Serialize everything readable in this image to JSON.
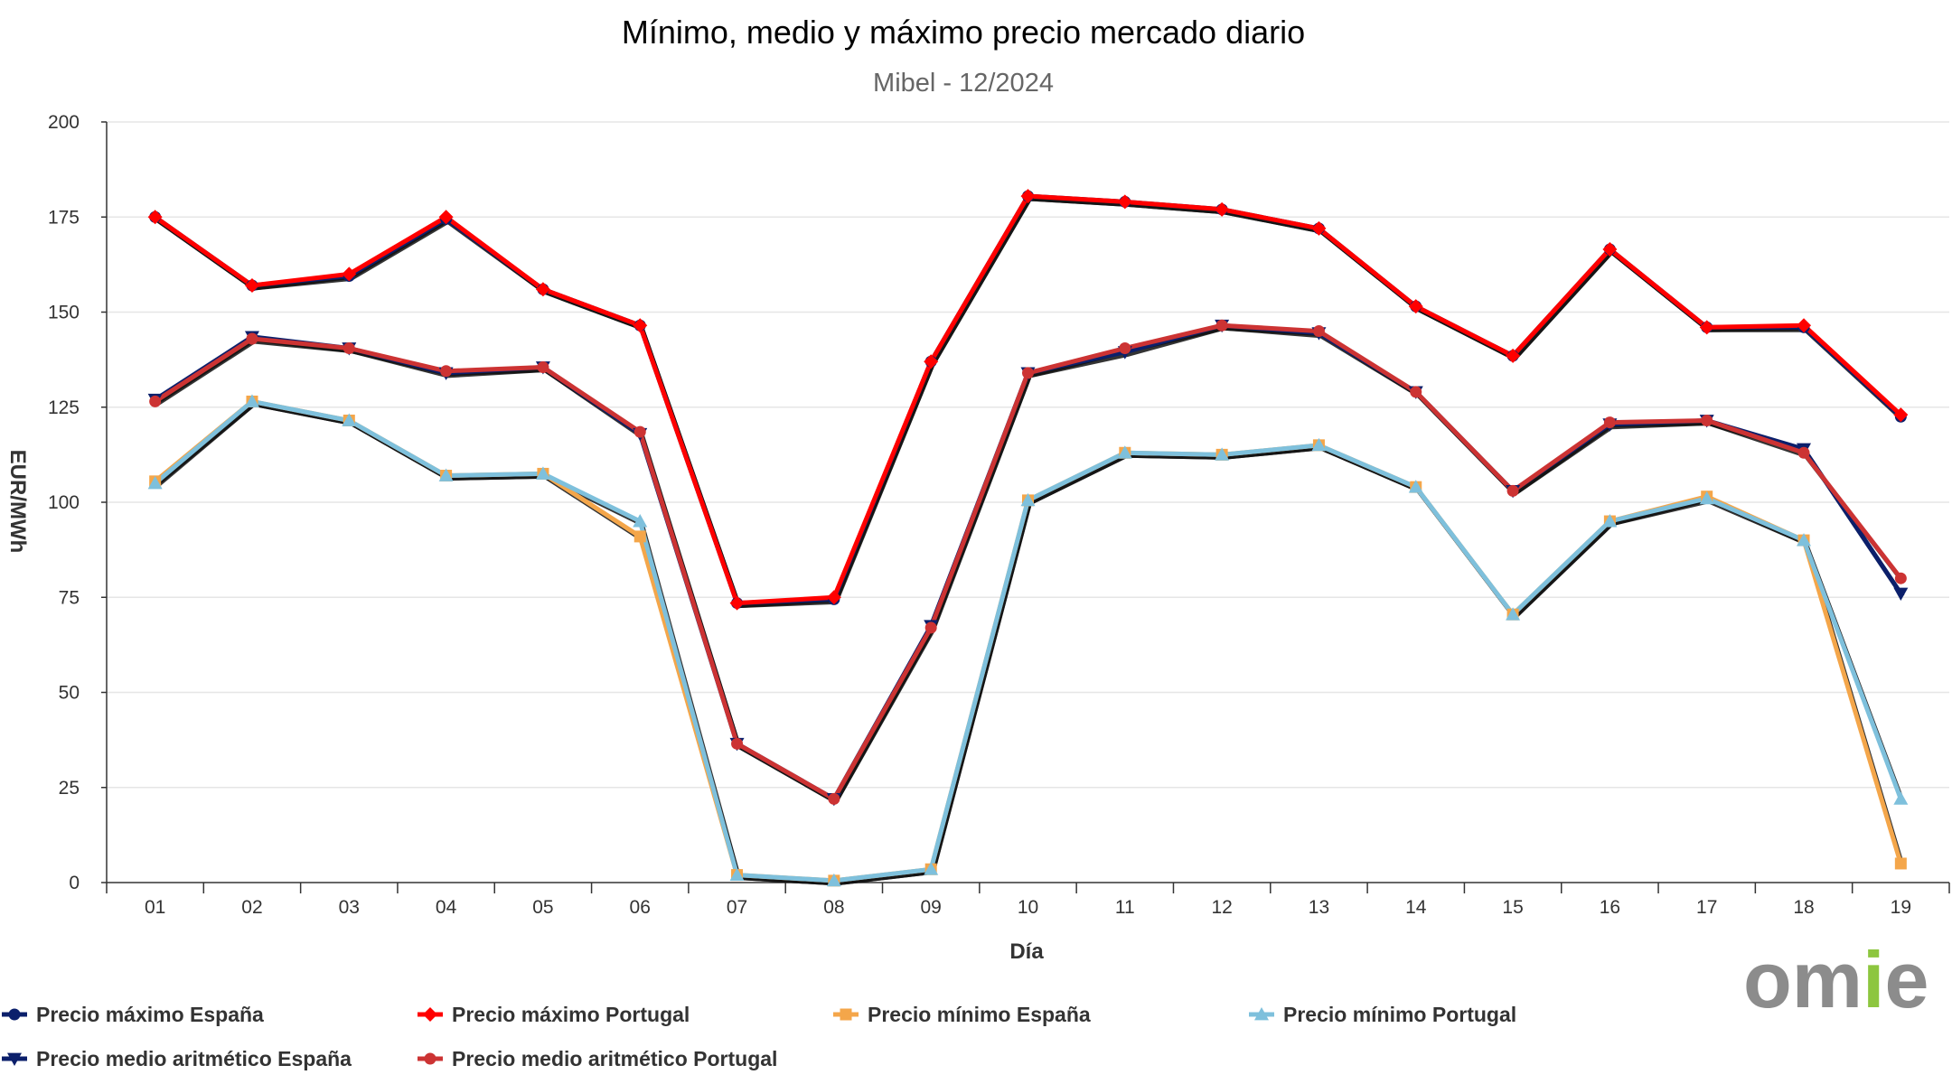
{
  "chart_data": {
    "type": "line",
    "title": "Mínimo, medio y máximo precio mercado diario",
    "subtitle": "Mibel - 12/2024",
    "xlabel": "Día",
    "ylabel": "EUR/MWh",
    "ylim": [
      0,
      200
    ],
    "yticks": [
      0,
      25,
      50,
      75,
      100,
      125,
      150,
      175,
      200
    ],
    "grid": true,
    "legend_position": "bottom",
    "categories": [
      "01",
      "02",
      "03",
      "04",
      "05",
      "06",
      "07",
      "08",
      "09",
      "10",
      "11",
      "12",
      "13",
      "14",
      "15",
      "16",
      "17",
      "18",
      "19"
    ],
    "series": [
      {
        "name": "Precio máximo España",
        "color": "#0b1f6b",
        "marker": "circle",
        "values": [
          175,
          157,
          159.5,
          174.5,
          156,
          146.5,
          73.5,
          74.5,
          137,
          180.5,
          179,
          177,
          172,
          151.5,
          138.5,
          166.5,
          146,
          146,
          122.5
        ]
      },
      {
        "name": "Precio máximo Portugal",
        "color": "#ff0000",
        "marker": "diamond",
        "values": [
          175,
          157,
          160,
          175,
          156,
          146.5,
          73.5,
          75,
          137,
          180.5,
          179,
          177,
          172,
          151.5,
          138.5,
          166.5,
          146,
          146.5,
          123
        ]
      },
      {
        "name": "Precio mínimo España",
        "color": "#f4a64a",
        "marker": "square",
        "values": [
          105.5,
          126.5,
          121.5,
          107,
          107.5,
          91,
          2,
          0.5,
          3.5,
          100.5,
          113,
          112.5,
          115,
          104,
          70.5,
          95,
          101.5,
          90,
          5
        ]
      },
      {
        "name": "Precio mínimo Portugal",
        "color": "#7ec0dc",
        "marker": "triangle",
        "values": [
          105,
          126.5,
          121.5,
          107,
          107.5,
          95,
          2,
          0.5,
          3.5,
          100.5,
          113,
          112.5,
          115,
          104,
          70.5,
          95,
          101,
          90,
          22
        ]
      },
      {
        "name": "Precio medio aritmético España",
        "color": "#0b1f6b",
        "marker": "triangle-down",
        "values": [
          127,
          143.5,
          140.5,
          134,
          135.5,
          118,
          36.5,
          22,
          67.5,
          134,
          139.5,
          146.5,
          144.5,
          129,
          103,
          120.5,
          121.5,
          114,
          76
        ]
      },
      {
        "name": "Precio medio aritmético Portugal",
        "color": "#cc3333",
        "marker": "circle",
        "values": [
          126.5,
          143,
          140.5,
          134.5,
          135.5,
          118.5,
          36.5,
          22,
          67,
          134,
          140.5,
          146.5,
          145,
          129,
          103,
          121,
          121.5,
          113,
          80
        ]
      }
    ]
  },
  "logo": {
    "text": "omie",
    "colors": [
      "#8c8c8c",
      "#8c8c8c",
      "#8dc63f",
      "#8c8c8c"
    ]
  }
}
